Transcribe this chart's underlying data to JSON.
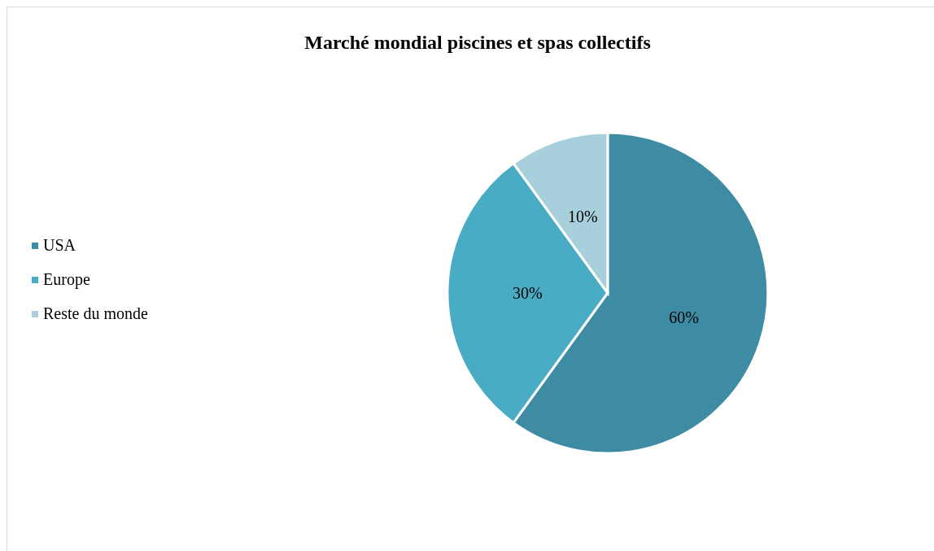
{
  "chart_data": {
    "type": "pie",
    "title": "Marché mondial piscines et spas collectifs",
    "categories": [
      "USA",
      "Europe",
      "Reste du monde"
    ],
    "values": [
      60,
      30,
      10
    ],
    "value_labels": [
      "60%",
      "30%",
      "10%"
    ],
    "colors": [
      "#3d8ca3",
      "#4aabc4",
      "#a8cfdc"
    ],
    "legend": "left"
  }
}
